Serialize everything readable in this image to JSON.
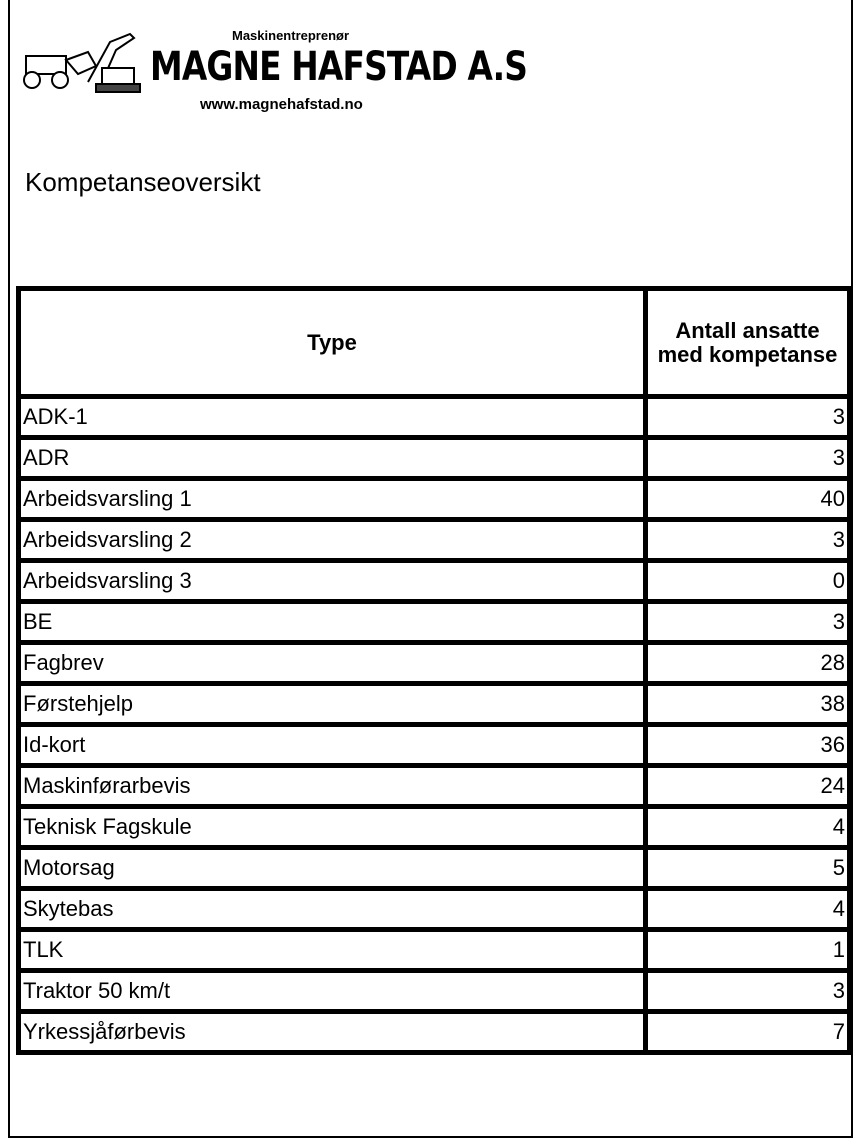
{
  "header": {
    "tagline": "Maskinentreprenør",
    "company": "MAGNE HAFSTAD A.S",
    "website": "www.magnehafstad.no"
  },
  "title": "Kompetanseoversikt",
  "table": {
    "columns": [
      "Type",
      "Antall ansatte med kompetanse"
    ],
    "rows": [
      [
        "ADK-1",
        3
      ],
      [
        "ADR",
        3
      ],
      [
        "Arbeidsvarsling 1",
        40
      ],
      [
        "Arbeidsvarsling 2",
        3
      ],
      [
        "Arbeidsvarsling 3",
        0
      ],
      [
        "BE",
        3
      ],
      [
        "Fagbrev",
        28
      ],
      [
        "Førstehjelp",
        38
      ],
      [
        "Id-kort",
        36
      ],
      [
        "Maskinførarbevis",
        24
      ],
      [
        "Teknisk Fagskule",
        4
      ],
      [
        "Motorsag",
        5
      ],
      [
        "Skytebas",
        4
      ],
      [
        "TLK",
        1
      ],
      [
        "Traktor 50 km/t",
        3
      ],
      [
        "Yrkessjåførbevis",
        7
      ]
    ]
  }
}
